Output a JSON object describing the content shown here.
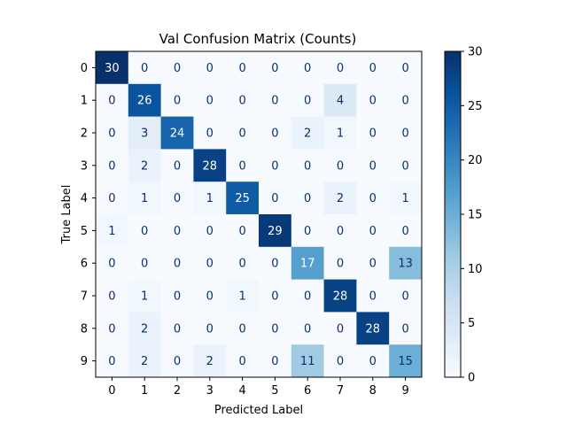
{
  "chart_data": {
    "type": "heatmap",
    "title": "Val Confusion Matrix (Counts)",
    "xlabel": "Predicted Label",
    "ylabel": "True Label",
    "x_categories": [
      "0",
      "1",
      "2",
      "3",
      "4",
      "5",
      "6",
      "7",
      "8",
      "9"
    ],
    "y_categories": [
      "0",
      "1",
      "2",
      "3",
      "4",
      "5",
      "6",
      "7",
      "8",
      "9"
    ],
    "values": [
      [
        30,
        0,
        0,
        0,
        0,
        0,
        0,
        0,
        0,
        0
      ],
      [
        0,
        26,
        0,
        0,
        0,
        0,
        0,
        4,
        0,
        0
      ],
      [
        0,
        3,
        24,
        0,
        0,
        0,
        2,
        1,
        0,
        0
      ],
      [
        0,
        2,
        0,
        28,
        0,
        0,
        0,
        0,
        0,
        0
      ],
      [
        0,
        1,
        0,
        1,
        25,
        0,
        0,
        2,
        0,
        1
      ],
      [
        1,
        0,
        0,
        0,
        0,
        29,
        0,
        0,
        0,
        0
      ],
      [
        0,
        0,
        0,
        0,
        0,
        0,
        17,
        0,
        0,
        13
      ],
      [
        0,
        1,
        0,
        0,
        1,
        0,
        0,
        28,
        0,
        0
      ],
      [
        0,
        2,
        0,
        0,
        0,
        0,
        0,
        0,
        28,
        0
      ],
      [
        0,
        2,
        0,
        2,
        0,
        0,
        11,
        0,
        0,
        15
      ]
    ],
    "colorbar": {
      "colormap": "Blues",
      "range": [
        0,
        30
      ],
      "ticks": [
        "0",
        "5",
        "10",
        "15",
        "20",
        "25",
        "30"
      ]
    },
    "grid": false
  }
}
